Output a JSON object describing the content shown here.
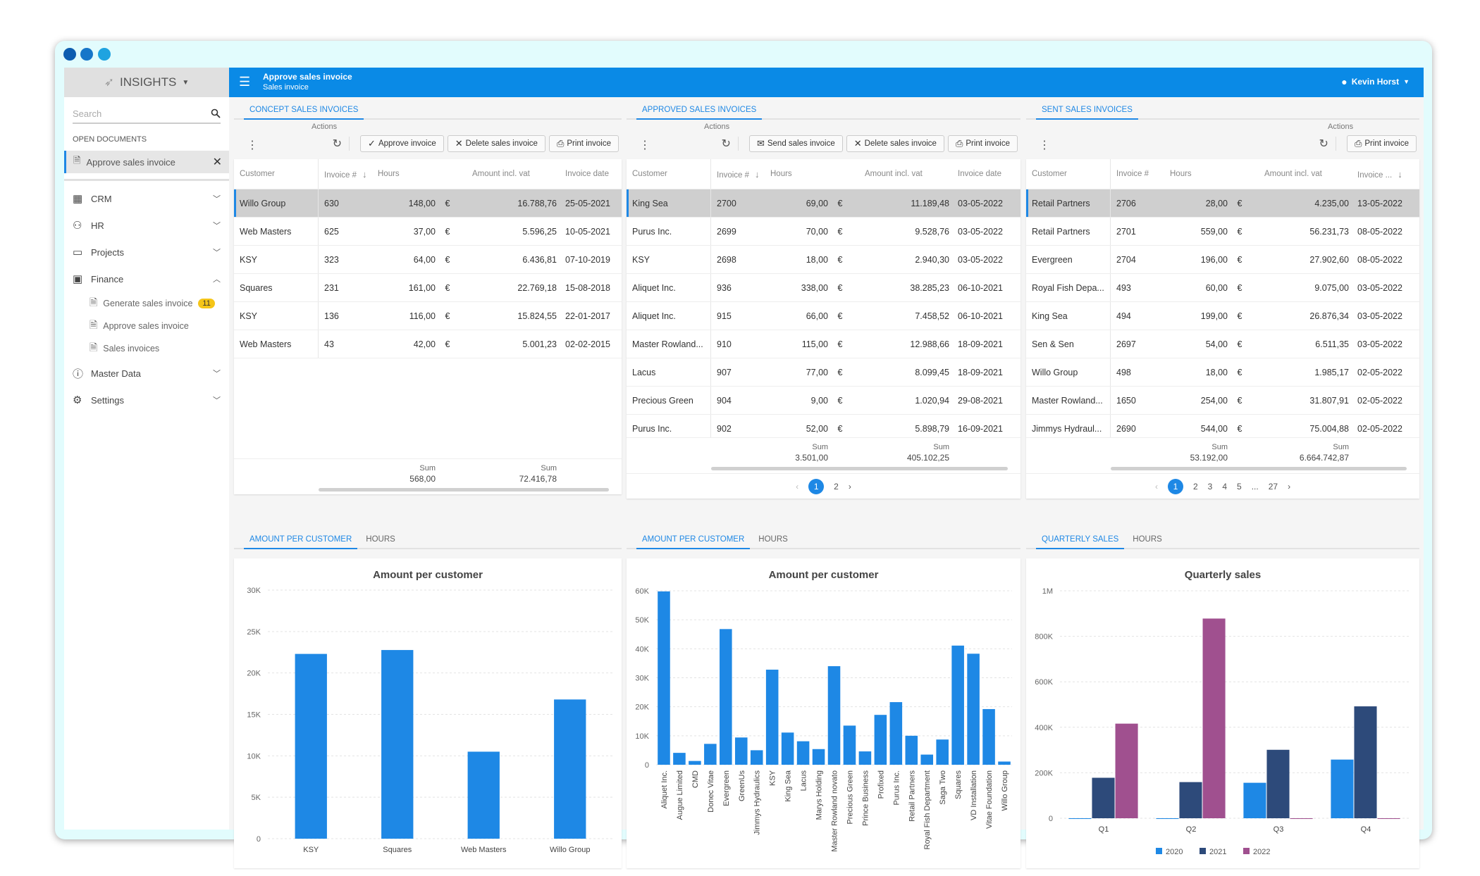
{
  "window": {
    "dots": [
      "#0d5db0",
      "#1676c9",
      "#1fa3e0"
    ]
  },
  "sidebar": {
    "brand": "INSIGHTS",
    "search_placeholder": "Search",
    "open_documents_label": "OPEN DOCUMENTS",
    "open_document": "Approve sales invoice",
    "nav": [
      {
        "label": "CRM",
        "icon": "building-icon",
        "expanded": false
      },
      {
        "label": "HR",
        "icon": "people-icon",
        "expanded": false
      },
      {
        "label": "Projects",
        "icon": "folder-icon",
        "expanded": false
      },
      {
        "label": "Finance",
        "icon": "cash-register-icon",
        "expanded": true
      },
      {
        "label": "Master Data",
        "icon": "info-icon",
        "expanded": false
      },
      {
        "label": "Settings",
        "icon": "gear-icon",
        "expanded": false
      }
    ],
    "finance_children": [
      {
        "label": "Generate sales invoice",
        "badge": "11"
      },
      {
        "label": "Approve sales invoice"
      },
      {
        "label": "Sales invoices"
      }
    ]
  },
  "topbar": {
    "title": "Approve sales invoice",
    "subtitle": "Sales invoice",
    "user": "Kevin Horst"
  },
  "panels": [
    {
      "tab": "CONCEPT SALES INVOICES",
      "actions_label": "Actions",
      "buttons": [
        {
          "label": "Approve invoice",
          "icon": "check-icon"
        },
        {
          "label": "Delete sales invoice",
          "icon": "x-icon"
        },
        {
          "label": "Print invoice",
          "icon": "printer-icon"
        }
      ],
      "columns": [
        "Customer",
        "Invoice #",
        "Hours",
        "",
        "Amount incl. vat",
        "Invoice date"
      ],
      "sort_column": 1,
      "rows": [
        [
          "Willo Group",
          "630",
          "148,00",
          "€",
          "16.788,76",
          "25-05-2021"
        ],
        [
          "Web Masters",
          "625",
          "37,00",
          "€",
          "5.596,25",
          "10-05-2021"
        ],
        [
          "KSY",
          "323",
          "64,00",
          "€",
          "6.436,81",
          "07-10-2019"
        ],
        [
          "Squares",
          "231",
          "161,00",
          "€",
          "22.769,18",
          "15-08-2018"
        ],
        [
          "KSY",
          "136",
          "116,00",
          "€",
          "15.824,55",
          "22-01-2017"
        ],
        [
          "Web Masters",
          "43",
          "42,00",
          "€",
          "5.001,23",
          "02-02-2015"
        ]
      ],
      "sum_label": "Sum",
      "sum_hours": "568,00",
      "sum_amount": "72.416,78",
      "pages": []
    },
    {
      "tab": "APPROVED SALES INVOICES",
      "actions_label": "Actions",
      "buttons": [
        {
          "label": "Send sales invoice",
          "icon": "envelope-icon"
        },
        {
          "label": "Delete sales invoice",
          "icon": "x-icon"
        },
        {
          "label": "Print invoice",
          "icon": "printer-icon"
        }
      ],
      "columns": [
        "Customer",
        "Invoice #",
        "Hours",
        "",
        "Amount incl. vat",
        "Invoice date"
      ],
      "sort_column": 1,
      "rows": [
        [
          "King Sea",
          "2700",
          "69,00",
          "€",
          "11.189,48",
          "03-05-2022"
        ],
        [
          "Purus Inc.",
          "2699",
          "70,00",
          "€",
          "9.528,76",
          "03-05-2022"
        ],
        [
          "KSY",
          "2698",
          "18,00",
          "€",
          "2.940,30",
          "03-05-2022"
        ],
        [
          "Aliquet Inc.",
          "936",
          "338,00",
          "€",
          "38.285,23",
          "06-10-2021"
        ],
        [
          "Aliquet Inc.",
          "915",
          "66,00",
          "€",
          "7.458,52",
          "06-10-2021"
        ],
        [
          "Master Rowland...",
          "910",
          "115,00",
          "€",
          "12.988,66",
          "18-09-2021"
        ],
        [
          "Lacus",
          "907",
          "77,00",
          "€",
          "8.099,45",
          "18-09-2021"
        ],
        [
          "Precious Green",
          "904",
          "9,00",
          "€",
          "1.020,94",
          "29-08-2021"
        ],
        [
          "Purus Inc.",
          "902",
          "52,00",
          "€",
          "5.898,79",
          "16-09-2021"
        ]
      ],
      "sum_label": "Sum",
      "sum_hours": "3.501,00",
      "sum_amount": "405.102,25",
      "pages": [
        "1",
        "2"
      ],
      "current_page": "1"
    },
    {
      "tab": "SENT SALES INVOICES",
      "actions_label": "Actions",
      "buttons": [
        {
          "label": "Print invoice",
          "icon": "printer-icon"
        }
      ],
      "columns": [
        "Customer",
        "Invoice #",
        "Hours",
        "",
        "Amount incl. vat",
        "Invoice ..."
      ],
      "sort_column": 5,
      "rows": [
        [
          "Retail Partners",
          "2706",
          "28,00",
          "€",
          "4.235,00",
          "13-05-2022"
        ],
        [
          "Retail Partners",
          "2701",
          "559,00",
          "€",
          "56.231,73",
          "08-05-2022"
        ],
        [
          "Evergreen",
          "2704",
          "196,00",
          "€",
          "27.902,60",
          "08-05-2022"
        ],
        [
          "Royal Fish Depa...",
          "493",
          "60,00",
          "€",
          "9.075,00",
          "03-05-2022"
        ],
        [
          "King Sea",
          "494",
          "199,00",
          "€",
          "26.876,34",
          "03-05-2022"
        ],
        [
          "Sen & Sen",
          "2697",
          "54,00",
          "€",
          "6.511,35",
          "03-05-2022"
        ],
        [
          "Willo Group",
          "498",
          "18,00",
          "€",
          "1.985,17",
          "02-05-2022"
        ],
        [
          "Master Rowland...",
          "1650",
          "254,00",
          "€",
          "31.807,91",
          "02-05-2022"
        ],
        [
          "Jimmys Hydraul...",
          "2690",
          "544,00",
          "€",
          "75.004,88",
          "02-05-2022"
        ]
      ],
      "sum_label": "Sum",
      "sum_hours": "53.192,00",
      "sum_amount": "6.664.742,87",
      "pages": [
        "1",
        "2",
        "3",
        "4",
        "5",
        "...",
        "27"
      ],
      "current_page": "1"
    }
  ],
  "chart_tabs": [
    [
      "AMOUNT PER CUSTOMER",
      "HOURS"
    ],
    [
      "AMOUNT PER CUSTOMER",
      "HOURS"
    ],
    [
      "QUARTERLY SALES",
      "HOURS"
    ]
  ],
  "chart_data": [
    {
      "type": "bar",
      "title": "Amount per customer",
      "categories": [
        "KSY",
        "Squares",
        "Web Masters",
        "Willo Group"
      ],
      "values": [
        22300,
        22769,
        10500,
        16800
      ],
      "ylim": [
        0,
        30000
      ],
      "yticks": [
        "0",
        "5K",
        "10K",
        "15K",
        "20K",
        "25K",
        "30K"
      ],
      "grid": true,
      "colors": [
        "#1e88e5"
      ]
    },
    {
      "type": "bar",
      "title": "Amount per customer",
      "categories": [
        "Aliquet Inc.",
        "Augue Limited",
        "CMD",
        "Donec Vitae",
        "Evergreen",
        "GreenUs",
        "Jimmys Hydraulics",
        "KSY",
        "King Sea",
        "Lacus",
        "Marys Holding",
        "Master Rowland novato",
        "Precious Green",
        "Prince Business",
        "Profixed",
        "Purus Inc.",
        "Retail Partners",
        "Royal Fish Department",
        "Saga Two",
        "Squares",
        "VD Installation",
        "Vitae Foundation",
        "Willo Group"
      ],
      "values": [
        59800,
        4100,
        1300,
        7200,
        46800,
        9400,
        5000,
        32800,
        11100,
        8100,
        5400,
        34000,
        13500,
        4600,
        17200,
        21600,
        10000,
        3500,
        8700,
        41100,
        38300,
        19200,
        1100
      ],
      "ylim": [
        0,
        60000
      ],
      "yticks": [
        "0",
        "10K",
        "20K",
        "30K",
        "40K",
        "50K",
        "60K"
      ],
      "grid": true,
      "colors": [
        "#1e88e5"
      ]
    },
    {
      "type": "bar",
      "title": "Quarterly sales",
      "categories": [
        "Q1",
        "Q2",
        "Q3",
        "Q4"
      ],
      "series": [
        {
          "name": "2020",
          "values": [
            0,
            0,
            156000,
            258000
          ],
          "color": "#1e88e5"
        },
        {
          "name": "2021",
          "values": [
            178000,
            159000,
            301000,
            492000
          ],
          "color": "#2d4a7a"
        },
        {
          "name": "2022",
          "values": [
            416000,
            878000,
            0,
            0
          ],
          "color": "#a0508f"
        }
      ],
      "ylim": [
        0,
        1000000
      ],
      "yticks": [
        "0",
        "200K",
        "400K",
        "600K",
        "800K",
        "1M"
      ],
      "grid": true,
      "legend": "bottom"
    }
  ]
}
